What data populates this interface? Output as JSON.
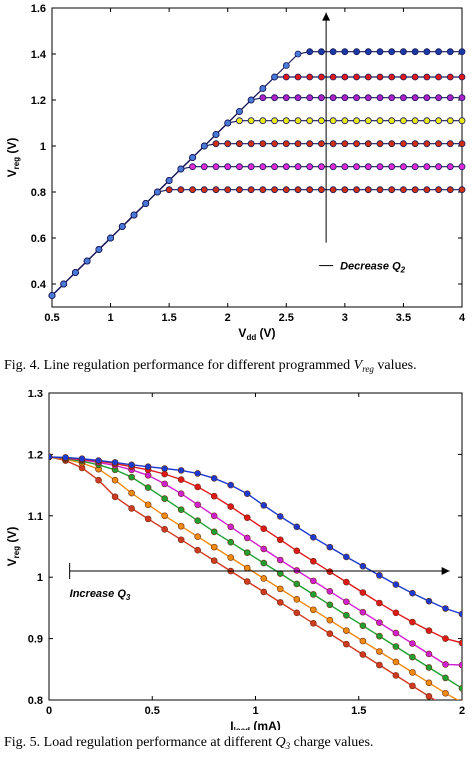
{
  "figures": [
    {
      "caption": {
        "prefix": "Fig. 4.  Line regulation performance for different programmed ",
        "var": "V",
        "var_sub": "reg",
        "suffix": " values."
      }
    },
    {
      "caption": {
        "prefix": "Fig. 5.  Load regulation performance at different ",
        "var": "Q",
        "var_sub": "3",
        "suffix": " charge values."
      }
    }
  ],
  "chart_data": [
    {
      "type": "line",
      "xlabel": "V",
      "xlabel_sub": "dd",
      "xlabel_unit": " (V)",
      "ylabel": "V",
      "ylabel_sub": "reg",
      "ylabel_unit": " (V)",
      "xlim": [
        0.5,
        4
      ],
      "ylim": [
        0.3,
        1.6
      ],
      "xticks": [
        "0.5",
        "1",
        "1.5",
        "2",
        "2.5",
        "3",
        "3.5",
        "4"
      ],
      "yticks": [
        "0.4",
        "0.6",
        "0.8",
        "1",
        "1.2",
        "1.4",
        "1.6"
      ],
      "grid": false,
      "annotation": {
        "text": "Decrease Q",
        "sub": "2"
      },
      "series": [
        {
          "color": "#d03010",
          "level": 0.81
        },
        {
          "color": "#e02ad8",
          "level": 0.91
        },
        {
          "color": "#d03010",
          "level": 1.01
        },
        {
          "color": "#eaea10",
          "level": 1.11
        },
        {
          "color": "#b020c8",
          "level": 1.21
        },
        {
          "color": "#e01818",
          "level": 1.3
        },
        {
          "color": "#1a3aa8",
          "level": 1.41
        }
      ]
    },
    {
      "type": "line",
      "xlabel": "I",
      "xlabel_sub": "load",
      "xlabel_unit": " (mA)",
      "ylabel": "V",
      "ylabel_sub": "reg",
      "ylabel_unit": " (V)",
      "xlim": [
        0,
        2
      ],
      "ylim": [
        0.8,
        1.3
      ],
      "xticks": [
        "0",
        "0.5",
        "1",
        "1.5",
        "2"
      ],
      "yticks": [
        "0.8",
        "0.9",
        "1",
        "1.1",
        "1.2",
        "1.3"
      ],
      "grid": false,
      "annotation": {
        "text": "Increase Q",
        "sub": "3"
      },
      "x": [
        0,
        0.08,
        0.16,
        0.24,
        0.32,
        0.4,
        0.48,
        0.56,
        0.64,
        0.72,
        0.8,
        0.88,
        0.96,
        1.04,
        1.12,
        1.2,
        1.28,
        1.36,
        1.44,
        1.52,
        1.6,
        1.68,
        1.76,
        1.84,
        1.92,
        2.0
      ],
      "series": [
        {
          "color": "#d03a20",
          "values": [
            1.196,
            1.19,
            1.178,
            1.158,
            1.131,
            1.112,
            1.095,
            1.078,
            1.061,
            1.044,
            1.027,
            1.01,
            0.993,
            0.976,
            0.959,
            0.942,
            0.925,
            0.908,
            0.891,
            0.874,
            0.857,
            0.84,
            0.823,
            0.806,
            0.789,
            0.772
          ]
        },
        {
          "color": "#f08a10",
          "values": [
            1.196,
            1.192,
            1.186,
            1.176,
            1.158,
            1.137,
            1.118,
            1.1,
            1.083,
            1.066,
            1.049,
            1.032,
            1.015,
            0.998,
            0.981,
            0.964,
            0.947,
            0.93,
            0.913,
            0.896,
            0.879,
            0.862,
            0.845,
            0.828,
            0.811,
            0.796
          ]
        },
        {
          "color": "#20a030",
          "values": [
            1.196,
            1.193,
            1.189,
            1.183,
            1.175,
            1.163,
            1.146,
            1.128,
            1.11,
            1.092,
            1.074,
            1.057,
            1.04,
            1.023,
            1.006,
            0.989,
            0.972,
            0.955,
            0.938,
            0.921,
            0.904,
            0.887,
            0.87,
            0.853,
            0.836,
            0.819
          ]
        },
        {
          "color": "#d020d0",
          "values": [
            1.196,
            1.194,
            1.191,
            1.187,
            1.182,
            1.175,
            1.166,
            1.152,
            1.136,
            1.118,
            1.1,
            1.082,
            1.064,
            1.046,
            1.028,
            1.011,
            0.994,
            0.977,
            0.96,
            0.943,
            0.926,
            0.909,
            0.892,
            0.875,
            0.858,
            0.857
          ]
        },
        {
          "color": "#e01818",
          "values": [
            1.196,
            1.194,
            1.192,
            1.189,
            1.185,
            1.18,
            1.175,
            1.168,
            1.159,
            1.147,
            1.132,
            1.115,
            1.097,
            1.079,
            1.061,
            1.043,
            1.026,
            1.009,
            0.992,
            0.975,
            0.958,
            0.942,
            0.927,
            0.913,
            0.9,
            0.893
          ]
        },
        {
          "color": "#1a3ad0",
          "values": [
            1.196,
            1.195,
            1.193,
            1.19,
            1.187,
            1.183,
            1.18,
            1.177,
            1.174,
            1.169,
            1.161,
            1.15,
            1.136,
            1.117,
            1.099,
            1.082,
            1.065,
            1.049,
            1.033,
            1.018,
            1.003,
            0.988,
            0.974,
            0.961,
            0.949,
            0.94
          ]
        }
      ]
    }
  ]
}
